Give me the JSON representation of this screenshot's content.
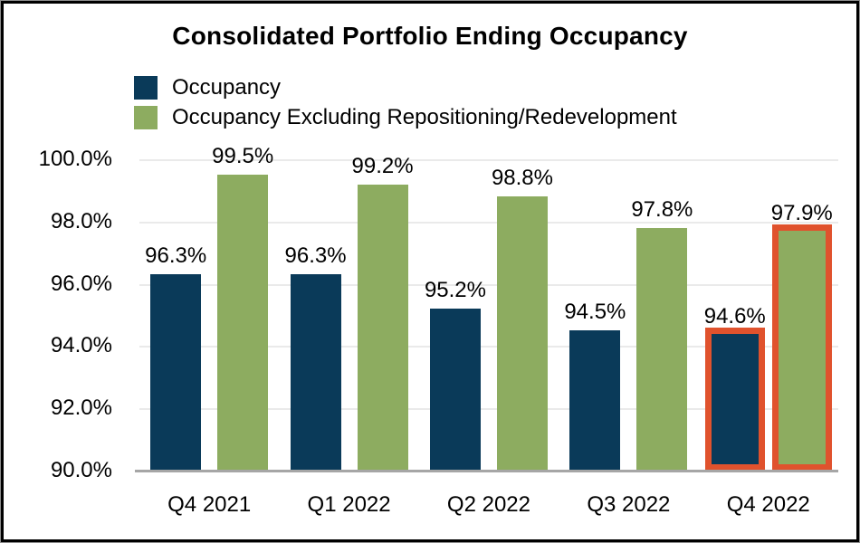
{
  "chart_data": {
    "type": "bar",
    "title": "Consolidated Portfolio Ending Occupancy",
    "categories": [
      "Q4 2021",
      "Q1 2022",
      "Q2 2022",
      "Q3 2022",
      "Q4 2022"
    ],
    "series": [
      {
        "name": "Occupancy",
        "color": "#0a3a59",
        "values": [
          96.3,
          96.3,
          95.2,
          94.5,
          94.6
        ],
        "labels": [
          "96.3%",
          "96.3%",
          "95.2%",
          "94.5%",
          "94.6%"
        ]
      },
      {
        "name": "Occupancy Excluding Repositioning/Redevelopment",
        "color": "#8dac60",
        "values": [
          99.5,
          99.2,
          98.8,
          97.8,
          97.9
        ],
        "labels": [
          "99.5%",
          "99.2%",
          "98.8%",
          "97.8%",
          "97.9%"
        ]
      }
    ],
    "y_axis": {
      "min": 90.0,
      "max": 100.0,
      "tick_values": [
        100.0,
        98.0,
        96.0,
        94.0,
        92.0,
        90.0
      ],
      "tick_labels": [
        "100.0%",
        "98.0%",
        "96.0%",
        "94.0%",
        "92.0%",
        "90.0%"
      ]
    },
    "grid": true,
    "legend_position": "top-left",
    "highlight": {
      "category_index": 4,
      "outline_color": "#e0522d"
    },
    "colors": {
      "gridline": "#eaeaea",
      "axis_line": "#a6a6a6",
      "text": "#000000"
    }
  }
}
